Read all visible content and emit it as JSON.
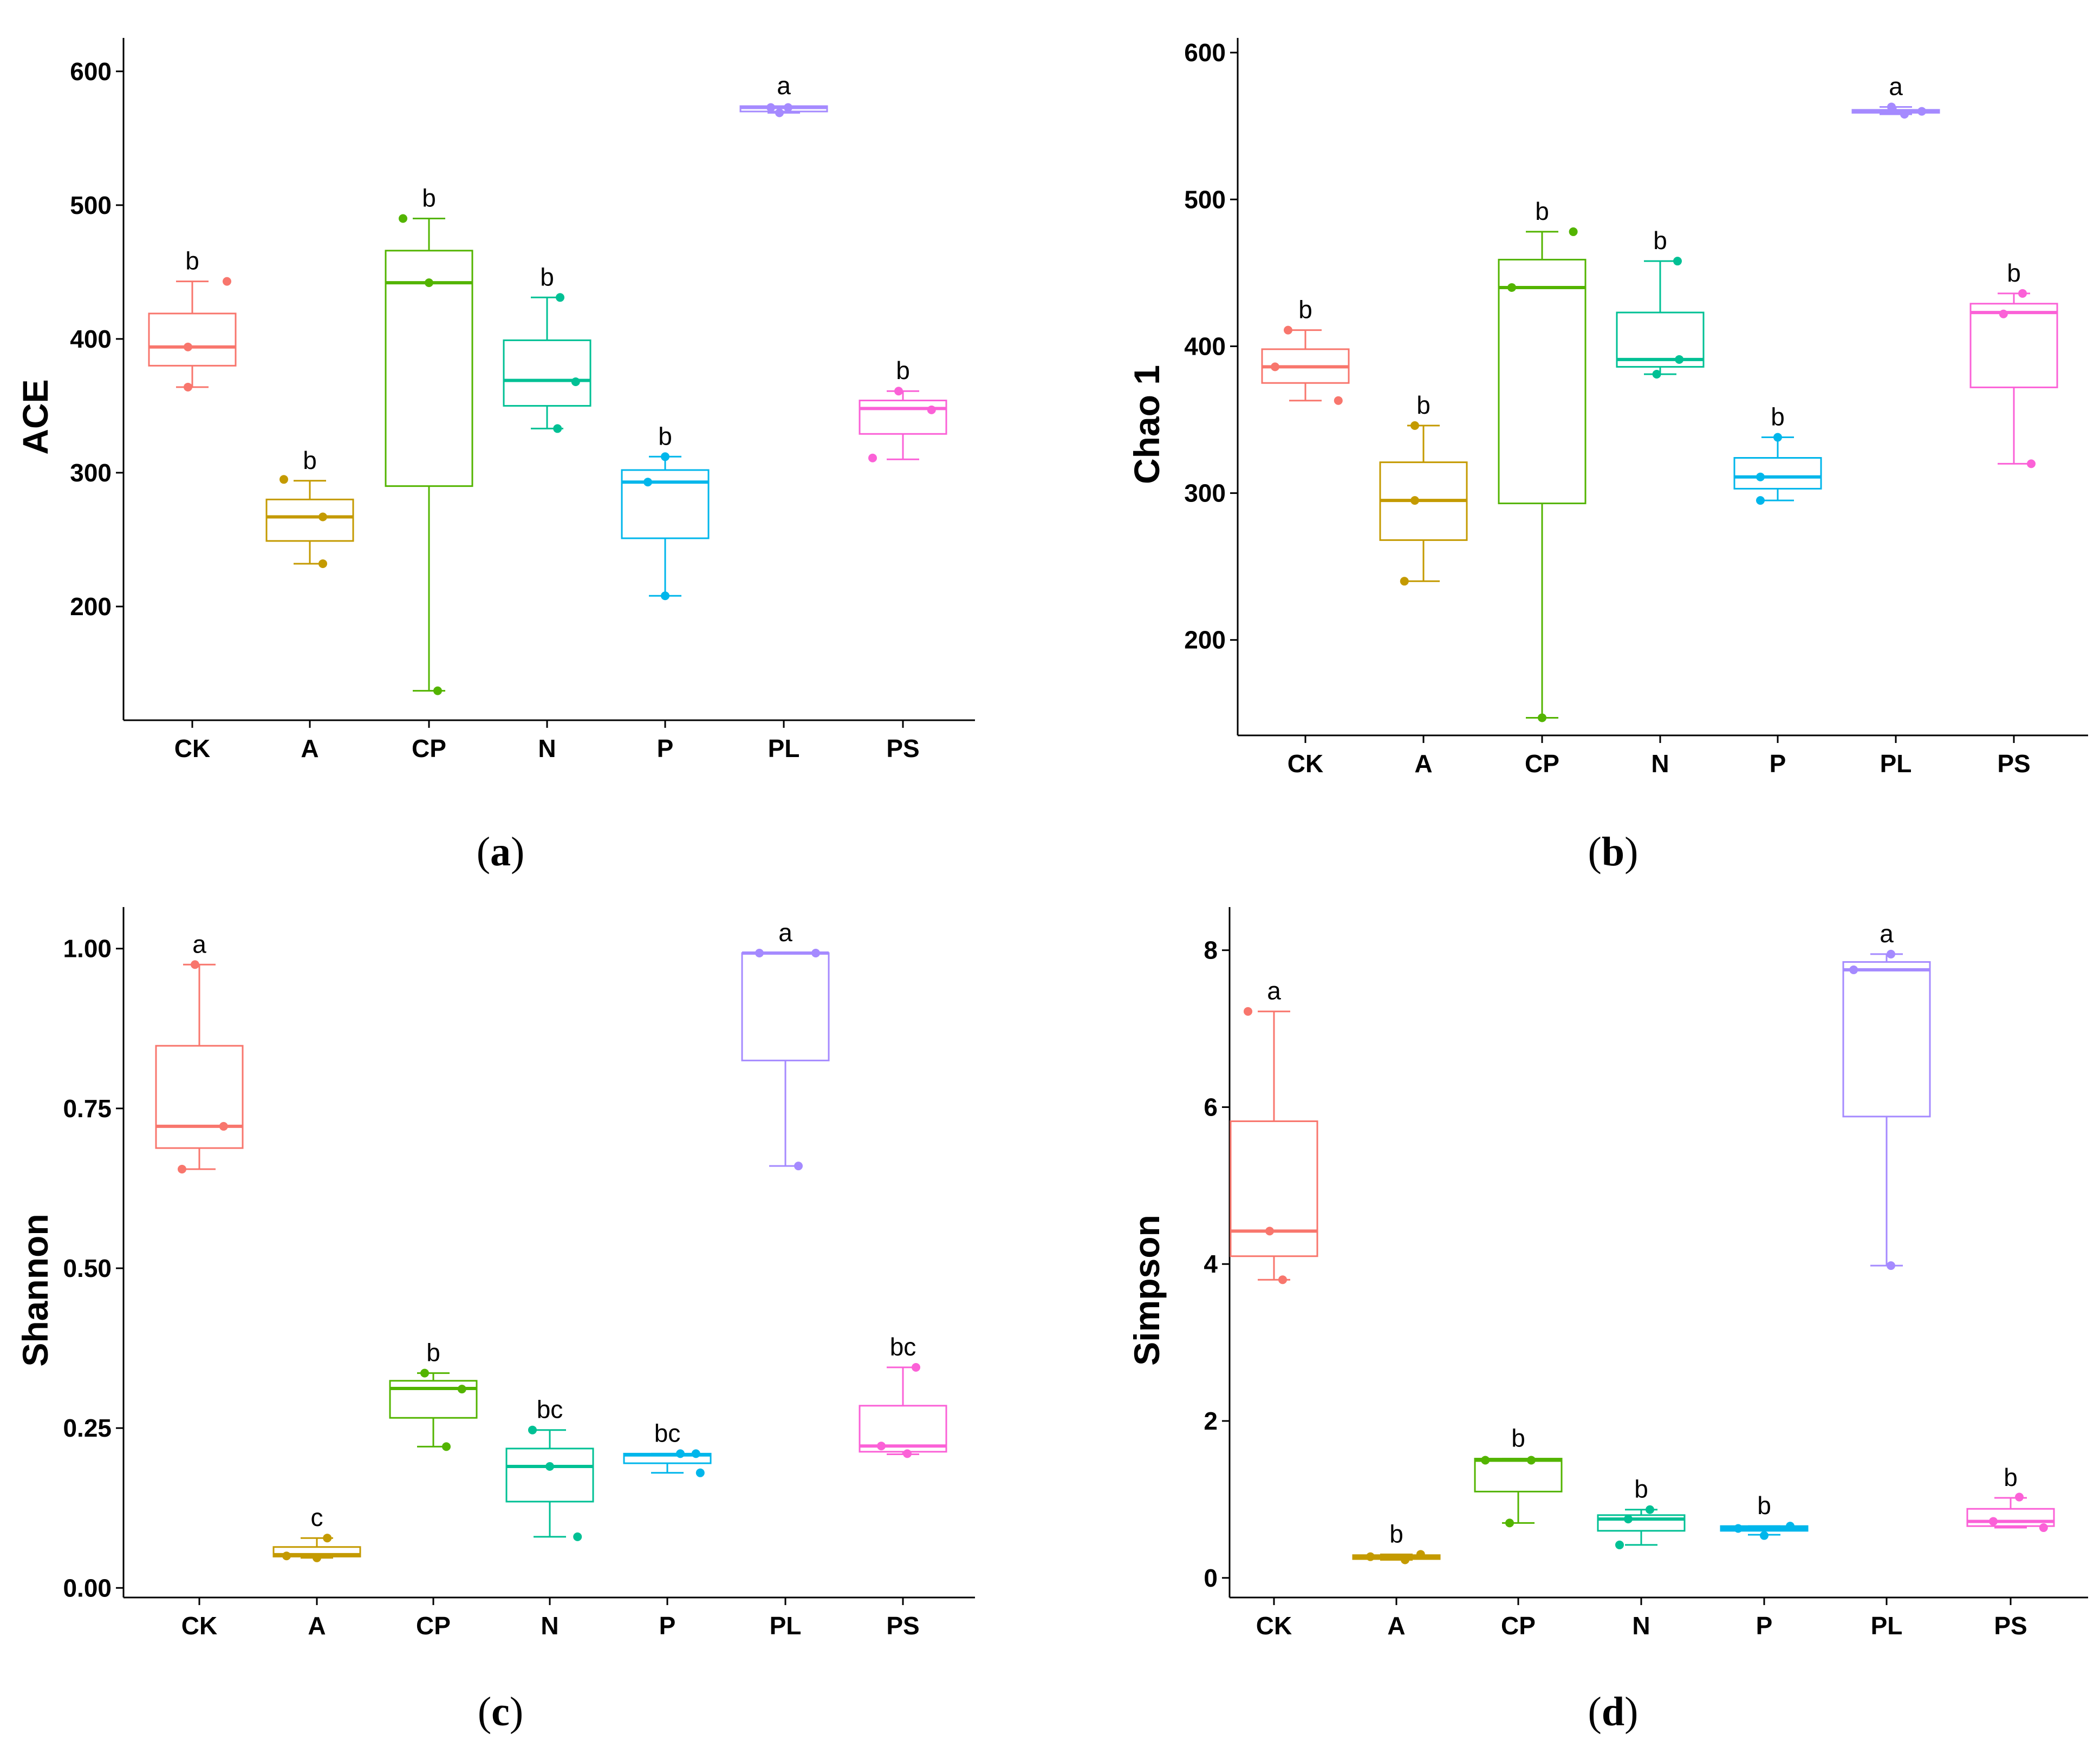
{
  "panels": [
    {
      "letter": "a"
    },
    {
      "letter": "b"
    },
    {
      "letter": "c"
    },
    {
      "letter": "d"
    }
  ],
  "chart_data": [
    {
      "type": "box",
      "ylabel": "ACE",
      "categories": [
        "CK",
        "A",
        "CP",
        "N",
        "P",
        "PL",
        "PS"
      ],
      "ylim": [
        115,
        625
      ],
      "yticks": [
        200,
        300,
        400,
        500,
        600
      ],
      "ytick_labels": [
        "200",
        "300",
        "400",
        "500",
        "600"
      ],
      "colors": [
        "#F8766D",
        "#C49A00",
        "#53B400",
        "#00C094",
        "#00B6EB",
        "#A58AFF",
        "#FB61D7"
      ],
      "boxes": [
        {
          "q1": 380,
          "median": 394,
          "q3": 419,
          "lower": 364,
          "upper": 443,
          "letter": "b",
          "points": [
            [
              -0.05,
              364
            ],
            [
              -0.05,
              394
            ],
            [
              0.4,
              443
            ]
          ]
        },
        {
          "q1": 249,
          "median": 267,
          "q3": 280,
          "lower": 232,
          "upper": 294,
          "letter": "b",
          "points": [
            [
              -0.3,
              295
            ],
            [
              0.15,
              267
            ],
            [
              0.15,
              232
            ]
          ]
        },
        {
          "q1": 290,
          "median": 442,
          "q3": 466,
          "lower": 137,
          "upper": 490,
          "letter": "b",
          "points": [
            [
              -0.3,
              490
            ],
            [
              0.0,
              442
            ],
            [
              0.1,
              137
            ]
          ]
        },
        {
          "q1": 350,
          "median": 369,
          "q3": 399,
          "lower": 333,
          "upper": 431,
          "letter": "b",
          "points": [
            [
              0.15,
              431
            ],
            [
              0.33,
              368
            ],
            [
              0.12,
              333
            ]
          ]
        },
        {
          "q1": 251,
          "median": 293,
          "q3": 302,
          "lower": 208,
          "upper": 312,
          "letter": "b",
          "points": [
            [
              -0.2,
              293
            ],
            [
              0.0,
              312
            ],
            [
              0.0,
              208
            ]
          ]
        },
        {
          "q1": 570,
          "median": 573,
          "q3": 574,
          "lower": 569,
          "upper": 574,
          "letter": "a",
          "points": [
            [
              -0.15,
              573
            ],
            [
              0.05,
              573
            ],
            [
              -0.05,
              569
            ]
          ]
        },
        {
          "q1": 329,
          "median": 348,
          "q3": 354,
          "lower": 310,
          "upper": 361,
          "letter": "b",
          "points": [
            [
              -0.35,
              311
            ],
            [
              -0.05,
              361
            ],
            [
              0.33,
              347
            ]
          ]
        }
      ]
    },
    {
      "type": "box",
      "ylabel": "Chao 1",
      "categories": [
        "CK",
        "A",
        "CP",
        "N",
        "P",
        "PL",
        "PS"
      ],
      "ylim": [
        135,
        610
      ],
      "yticks": [
        200,
        300,
        400,
        500,
        600
      ],
      "ytick_labels": [
        "200",
        "300",
        "400",
        "500",
        "600"
      ],
      "colors": [
        "#F8766D",
        "#C49A00",
        "#53B400",
        "#00C094",
        "#00B6EB",
        "#A58AFF",
        "#FB61D7"
      ],
      "boxes": [
        {
          "q1": 375,
          "median": 386,
          "q3": 398,
          "lower": 363,
          "upper": 411,
          "letter": "b",
          "points": [
            [
              -0.2,
              411
            ],
            [
              -0.35,
              386
            ],
            [
              0.38,
              363
            ]
          ]
        },
        {
          "q1": 268,
          "median": 295,
          "q3": 321,
          "lower": 240,
          "upper": 346,
          "letter": "b",
          "points": [
            [
              -0.1,
              346
            ],
            [
              -0.1,
              295
            ],
            [
              -0.22,
              240
            ]
          ]
        },
        {
          "q1": 293,
          "median": 440,
          "q3": 459,
          "lower": 147,
          "upper": 478,
          "letter": "b",
          "points": [
            [
              0.36,
              478
            ],
            [
              -0.35,
              440
            ],
            [
              0.0,
              147
            ]
          ]
        },
        {
          "q1": 386,
          "median": 391,
          "q3": 423,
          "lower": 381,
          "upper": 458,
          "letter": "b",
          "points": [
            [
              0.2,
              458
            ],
            [
              0.22,
              391
            ],
            [
              -0.04,
              381
            ]
          ]
        },
        {
          "q1": 303,
          "median": 311,
          "q3": 324,
          "lower": 295,
          "upper": 338,
          "letter": "b",
          "points": [
            [
              0.0,
              338
            ],
            [
              -0.2,
              311
            ],
            [
              -0.2,
              295
            ]
          ]
        },
        {
          "q1": 559,
          "median": 560,
          "q3": 561,
          "lower": 558,
          "upper": 563,
          "letter": "a",
          "points": [
            [
              -0.05,
              563
            ],
            [
              0.1,
              558
            ],
            [
              0.3,
              560
            ]
          ]
        },
        {
          "q1": 372,
          "median": 423,
          "q3": 429,
          "lower": 320,
          "upper": 436,
          "letter": "b",
          "points": [
            [
              0.1,
              436
            ],
            [
              -0.12,
              422
            ],
            [
              0.2,
              320
            ]
          ]
        }
      ]
    },
    {
      "type": "box",
      "ylabel": "Shannon",
      "categories": [
        "CK",
        "A",
        "CP",
        "N",
        "P",
        "PL",
        "PS"
      ],
      "ylim": [
        -0.015,
        1.065
      ],
      "yticks": [
        0,
        0.25,
        0.5,
        0.75,
        1.0
      ],
      "ytick_labels": [
        "0.00",
        "0.25",
        "0.50",
        "0.75",
        "1.00"
      ],
      "colors": [
        "#F8766D",
        "#C49A00",
        "#53B400",
        "#00C094",
        "#00B6EB",
        "#A58AFF",
        "#FB61D7"
      ],
      "boxes": [
        {
          "q1": 0.688,
          "median": 0.722,
          "q3": 0.848,
          "lower": 0.655,
          "upper": 0.975,
          "letter": "a",
          "points": [
            [
              -0.05,
              0.975
            ],
            [
              0.28,
              0.722
            ],
            [
              -0.2,
              0.655
            ]
          ]
        },
        {
          "q1": 0.049,
          "median": 0.052,
          "q3": 0.064,
          "lower": 0.047,
          "upper": 0.078,
          "letter": "c",
          "points": [
            [
              0.12,
              0.078
            ],
            [
              -0.35,
              0.05
            ],
            [
              0.0,
              0.047
            ]
          ]
        },
        {
          "q1": 0.266,
          "median": 0.312,
          "q3": 0.324,
          "lower": 0.221,
          "upper": 0.336,
          "letter": "b",
          "points": [
            [
              -0.1,
              0.336
            ],
            [
              0.33,
              0.311
            ],
            [
              0.15,
              0.221
            ]
          ]
        },
        {
          "q1": 0.135,
          "median": 0.19,
          "q3": 0.218,
          "lower": 0.08,
          "upper": 0.247,
          "letter": "bc",
          "points": [
            [
              -0.2,
              0.247
            ],
            [
              0.32,
              0.08
            ],
            [
              0.0,
              0.19
            ]
          ]
        },
        {
          "q1": 0.195,
          "median": 0.208,
          "q3": 0.21,
          "lower": 0.18,
          "upper": 0.21,
          "letter": "bc",
          "points": [
            [
              0.15,
              0.21
            ],
            [
              0.33,
              0.21
            ],
            [
              0.38,
              0.18
            ]
          ]
        },
        {
          "q1": 0.825,
          "median": 0.993,
          "q3": 0.993,
          "lower": 0.66,
          "upper": 0.993,
          "letter": "a",
          "points": [
            [
              -0.3,
              0.993
            ],
            [
              0.35,
              0.993
            ],
            [
              0.15,
              0.66
            ]
          ]
        },
        {
          "q1": 0.213,
          "median": 0.222,
          "q3": 0.285,
          "lower": 0.209,
          "upper": 0.345,
          "letter": "bc",
          "points": [
            [
              0.15,
              0.345
            ],
            [
              -0.25,
              0.222
            ],
            [
              0.05,
              0.21
            ]
          ]
        }
      ]
    },
    {
      "type": "box",
      "ylabel": "Simpson",
      "categories": [
        "CK",
        "A",
        "CP",
        "N",
        "P",
        "PL",
        "PS"
      ],
      "ylim": [
        -0.25,
        8.55
      ],
      "yticks": [
        0,
        2,
        4,
        6,
        8
      ],
      "ytick_labels": [
        "0",
        "2",
        "4",
        "6",
        "8"
      ],
      "colors": [
        "#F8766D",
        "#C49A00",
        "#53B400",
        "#00C094",
        "#00B6EB",
        "#A58AFF",
        "#FB61D7"
      ],
      "boxes": [
        {
          "q1": 4.1,
          "median": 4.42,
          "q3": 5.82,
          "lower": 3.8,
          "upper": 7.22,
          "letter": "a",
          "points": [
            [
              -0.3,
              7.22
            ],
            [
              -0.05,
              4.42
            ],
            [
              0.1,
              3.8
            ]
          ]
        },
        {
          "q1": 0.24,
          "median": 0.27,
          "q3": 0.29,
          "lower": 0.23,
          "upper": 0.3,
          "letter": "b",
          "points": [
            [
              -0.3,
              0.27
            ],
            [
              0.1,
              0.23
            ],
            [
              0.28,
              0.3
            ]
          ]
        },
        {
          "q1": 1.1,
          "median": 1.5,
          "q3": 1.52,
          "lower": 0.7,
          "upper": 1.52,
          "letter": "b",
          "points": [
            [
              -0.38,
              1.5
            ],
            [
              0.15,
              1.5
            ],
            [
              -0.1,
              0.7
            ]
          ]
        },
        {
          "q1": 0.6,
          "median": 0.75,
          "q3": 0.8,
          "lower": 0.42,
          "upper": 0.87,
          "letter": "b",
          "points": [
            [
              0.1,
              0.87
            ],
            [
              -0.15,
              0.75
            ],
            [
              -0.25,
              0.42
            ]
          ]
        },
        {
          "q1": 0.6,
          "median": 0.63,
          "q3": 0.66,
          "lower": 0.55,
          "upper": 0.66,
          "letter": "b",
          "points": [
            [
              0.3,
              0.66
            ],
            [
              -0.3,
              0.63
            ],
            [
              0.0,
              0.54
            ]
          ]
        },
        {
          "q1": 5.88,
          "median": 7.75,
          "q3": 7.85,
          "lower": 3.98,
          "upper": 7.95,
          "letter": "a",
          "points": [
            [
              0.05,
              7.95
            ],
            [
              -0.38,
              7.75
            ],
            [
              0.05,
              3.98
            ]
          ]
        },
        {
          "q1": 0.66,
          "median": 0.72,
          "q3": 0.88,
          "lower": 0.64,
          "upper": 1.02,
          "letter": "b",
          "points": [
            [
              0.1,
              1.03
            ],
            [
              -0.2,
              0.72
            ],
            [
              0.38,
              0.64
            ]
          ]
        }
      ]
    }
  ]
}
